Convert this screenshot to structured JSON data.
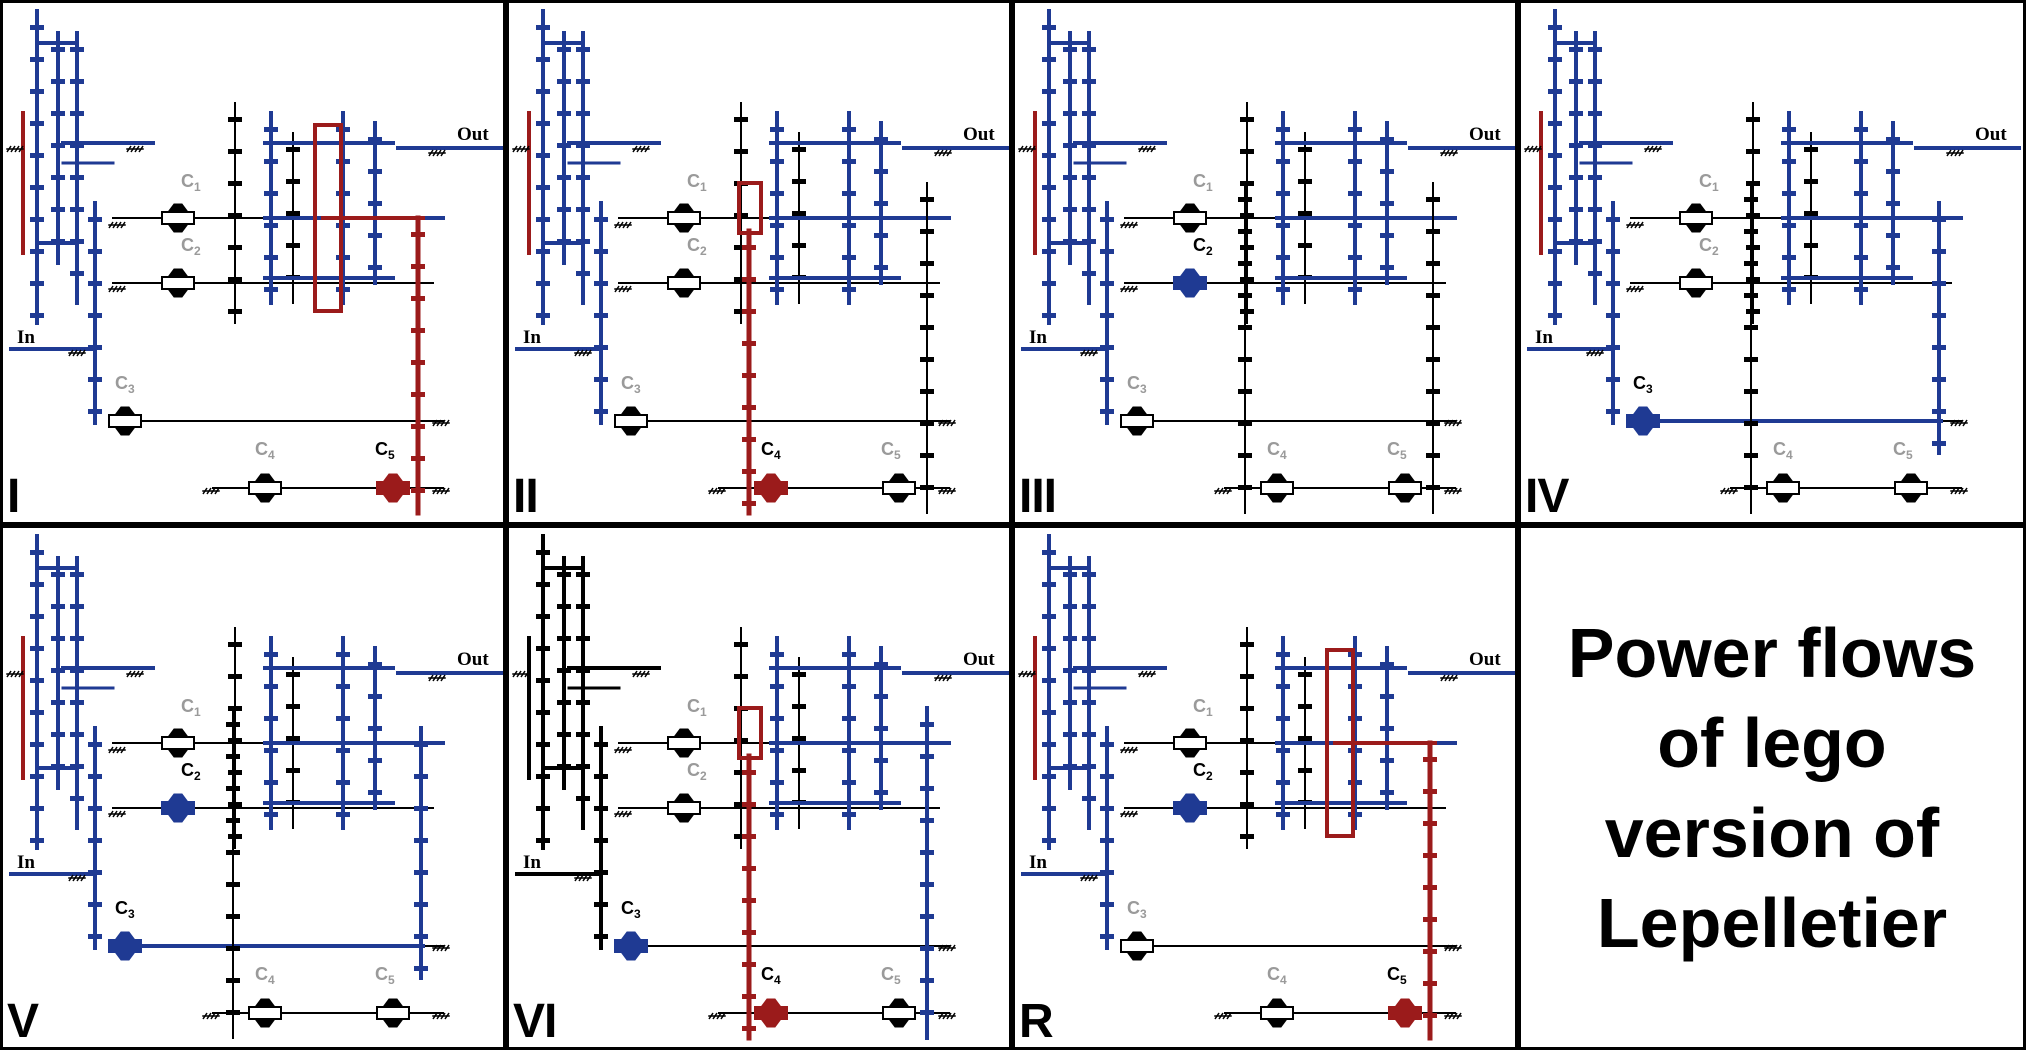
{
  "panels": [
    {
      "gear": "I",
      "clutches": {
        "C1": "off",
        "C2": "off",
        "C3": "off",
        "C4": "off",
        "C5": "on"
      },
      "mode": "under"
    },
    {
      "gear": "II",
      "clutches": {
        "C1": "off",
        "C2": "off",
        "C3": "off",
        "C4": "on",
        "C5": "off"
      },
      "mode": "split"
    },
    {
      "gear": "III",
      "clutches": {
        "C1": "off",
        "C2": "on",
        "C3": "off",
        "C4": "off",
        "C5": "off"
      },
      "mode": "blue"
    },
    {
      "gear": "IV",
      "clutches": {
        "C1": "off",
        "C2": "off",
        "C3": "on",
        "C4": "off",
        "C5": "off"
      },
      "mode": "loop"
    },
    {
      "gear": "V",
      "clutches": {
        "C1": "off",
        "C2": "on",
        "C3": "on",
        "C4": "off",
        "C5": "off"
      },
      "mode": "loop"
    },
    {
      "gear": "VI",
      "clutches": {
        "C1": "off",
        "C2": "off",
        "C3": "on",
        "C4": "on",
        "C5": "off"
      },
      "mode": "six"
    },
    {
      "gear": "R",
      "clutches": {
        "C1": "off",
        "C2": "on",
        "C3": "off",
        "C4": "off",
        "C5": "on"
      },
      "mode": "reverse"
    }
  ],
  "labels": {
    "in": "In",
    "out": "Out",
    "clutch": [
      "C1",
      "C2",
      "C3",
      "C4",
      "C5"
    ]
  },
  "title": {
    "lines": [
      "Power flows",
      "of lego",
      "version of",
      "Lepelletier"
    ]
  },
  "colors": {
    "power": "#1f3a93",
    "reaction": "#9b1b1b",
    "idle": "#000000",
    "inactive_label": "#9a9a9a"
  }
}
